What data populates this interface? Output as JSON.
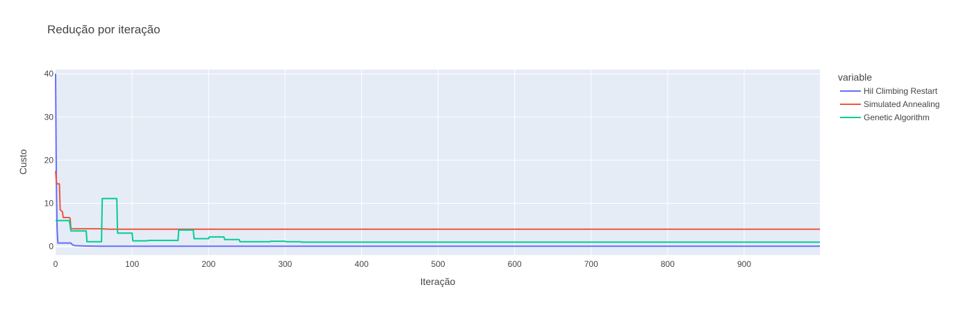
{
  "chart_data": {
    "type": "line",
    "title": "Redução por iteração",
    "xlabel": "Iteração",
    "ylabel": "Custo",
    "xlim": [
      0,
      999
    ],
    "ylim": [
      -2,
      41
    ],
    "xticks": [
      0,
      100,
      200,
      300,
      400,
      500,
      600,
      700,
      800,
      900
    ],
    "yticks": [
      0,
      10,
      20,
      30,
      40
    ],
    "grid": true,
    "legend": {
      "title": "variable",
      "placement": "right"
    },
    "series": [
      {
        "name": "Hil Climbing Restart",
        "color": "#636efa",
        "points": [
          [
            0,
            40
          ],
          [
            1,
            15
          ],
          [
            2,
            4
          ],
          [
            3,
            0.8
          ],
          [
            20,
            0.8
          ],
          [
            22,
            0.4
          ],
          [
            25,
            0.2
          ],
          [
            40,
            0.1
          ],
          [
            60,
            0.05
          ],
          [
            999,
            0.05
          ]
        ]
      },
      {
        "name": "Simulated Annealing",
        "color": "#ef553b",
        "points": [
          [
            0,
            17.5
          ],
          [
            1,
            15
          ],
          [
            2,
            14.5
          ],
          [
            5,
            14.5
          ],
          [
            6,
            8.5
          ],
          [
            8,
            8.2
          ],
          [
            9,
            8
          ],
          [
            10,
            6.7
          ],
          [
            18,
            6.7
          ],
          [
            19,
            6.5
          ],
          [
            20,
            4.1
          ],
          [
            60,
            4.1
          ],
          [
            70,
            4.0
          ],
          [
            999,
            4.0
          ]
        ]
      },
      {
        "name": "Genetic Algorithm",
        "color": "#00cc96",
        "points": [
          [
            0,
            6.0
          ],
          [
            18,
            6.0
          ],
          [
            20,
            3.6
          ],
          [
            40,
            3.6
          ],
          [
            41,
            1.1
          ],
          [
            60,
            1.1
          ],
          [
            61,
            11.1
          ],
          [
            80,
            11.1
          ],
          [
            81,
            3.1
          ],
          [
            100,
            3.1
          ],
          [
            101,
            1.3
          ],
          [
            120,
            1.3
          ],
          [
            121,
            1.4
          ],
          [
            160,
            1.4
          ],
          [
            161,
            3.8
          ],
          [
            180,
            3.8
          ],
          [
            181,
            1.8
          ],
          [
            200,
            1.8
          ],
          [
            201,
            2.2
          ],
          [
            220,
            2.2
          ],
          [
            221,
            1.6
          ],
          [
            240,
            1.6
          ],
          [
            241,
            1.1
          ],
          [
            280,
            1.1
          ],
          [
            281,
            1.2
          ],
          [
            300,
            1.2
          ],
          [
            301,
            1.1
          ],
          [
            320,
            1.1
          ],
          [
            321,
            1.0
          ],
          [
            999,
            1.0
          ]
        ]
      }
    ]
  }
}
